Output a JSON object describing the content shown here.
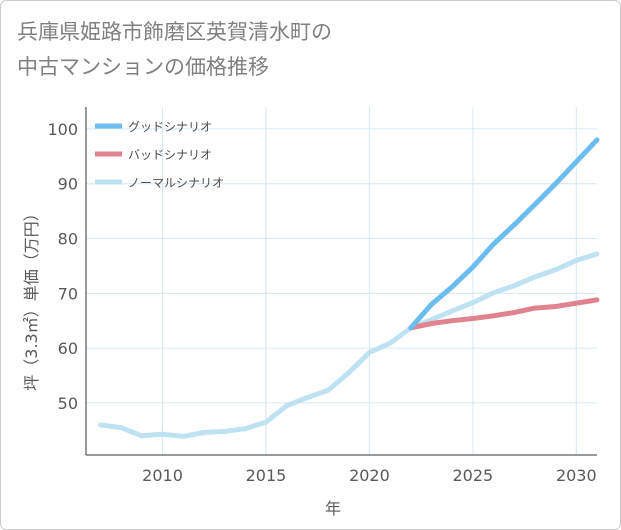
{
  "title": {
    "line1": "兵庫県姫路市飾磨区英賀清水町の",
    "line2": "中古マンションの価格推移"
  },
  "chart_data": {
    "type": "line",
    "xlabel": "年",
    "ylabel": "坪（3.3㎡）単価（万円）",
    "xlim": [
      2006.3,
      2031
    ],
    "ylim": [
      40.5,
      104
    ],
    "x_ticks": [
      2010,
      2015,
      2020,
      2025,
      2030
    ],
    "y_ticks": [
      50,
      60,
      70,
      80,
      90,
      100
    ],
    "grid": true,
    "legend_position": "top-left",
    "series": [
      {
        "name": "グッドシナリオ",
        "color": "#6bbdf0",
        "x": [
          2022,
          2023,
          2024,
          2025,
          2026,
          2027,
          2028,
          2029,
          2030,
          2031
        ],
        "values": [
          63.7,
          68.0,
          71.2,
          74.8,
          79.0,
          82.5,
          86.2,
          90.0,
          94.0,
          98.0
        ]
      },
      {
        "name": "バッドシナリオ",
        "color": "#e0838f",
        "x": [
          2022,
          2023,
          2024,
          2025,
          2026,
          2027,
          2028,
          2029,
          2030,
          2031
        ],
        "values": [
          63.7,
          64.5,
          65.0,
          65.4,
          65.9,
          66.5,
          67.3,
          67.6,
          68.2,
          68.8
        ]
      },
      {
        "name": "ノーマルシナリオ",
        "color": "#bfe2f2",
        "x": [
          2007,
          2008,
          2009,
          2010,
          2011,
          2012,
          2013,
          2014,
          2015,
          2016,
          2017,
          2018,
          2019,
          2020,
          2021,
          2022,
          2023,
          2024,
          2025,
          2026,
          2027,
          2028,
          2029,
          2030,
          2031
        ],
        "values": [
          46.0,
          45.5,
          44.0,
          44.3,
          43.9,
          44.6,
          44.8,
          45.3,
          46.5,
          49.5,
          51.0,
          52.3,
          55.5,
          59.2,
          60.9,
          63.7,
          65.2,
          66.8,
          68.3,
          70.1,
          71.4,
          73.0,
          74.3,
          76.0,
          77.2
        ]
      }
    ]
  }
}
